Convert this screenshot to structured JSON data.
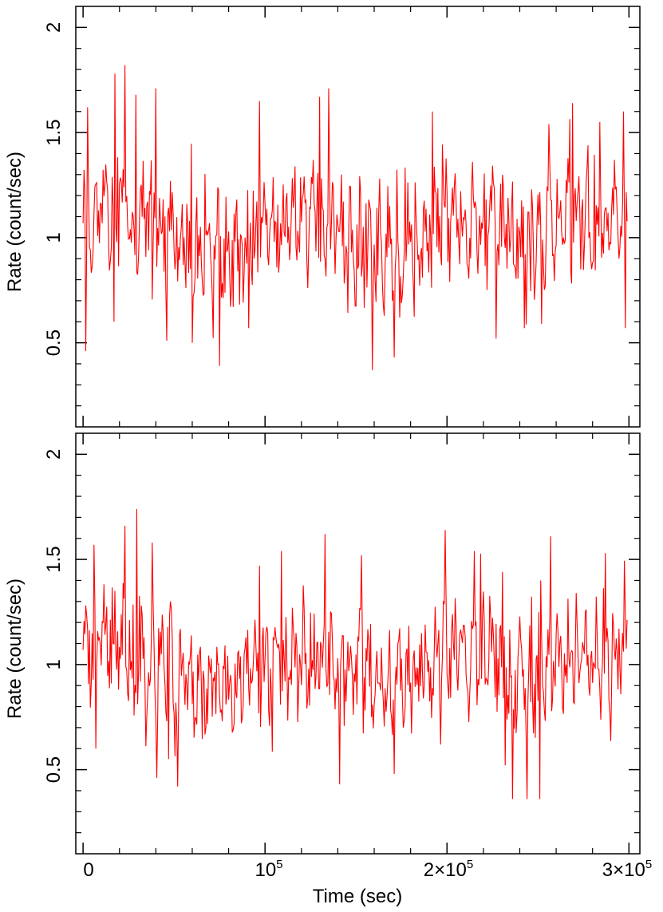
{
  "figure": {
    "xlabel": "Time (sec)",
    "x_tick_labels": [
      {
        "mantissa": "0",
        "exponent": ""
      },
      {
        "mantissa": "10",
        "exponent": "5"
      },
      {
        "mantissa": "2×10",
        "exponent": "5"
      },
      {
        "mantissa": "3×10",
        "exponent": "5"
      }
    ]
  },
  "chart_data": [
    {
      "type": "line",
      "panel": "top",
      "ylabel": "Rate (count/sec)",
      "xlim": [
        -4000,
        306000
      ],
      "ylim": [
        0.1,
        2.1
      ],
      "y_ticks": [
        0.5,
        1,
        1.5,
        2
      ],
      "y_tick_labels": [
        "0.5",
        "1",
        "1.5",
        "2"
      ],
      "x_ticks": [
        0,
        100000,
        200000,
        300000
      ],
      "series_color": "#ff0000",
      "time_step_sec": 500,
      "series": [
        {
          "envelope": {
            "x": [
              0,
              20000,
              40000,
              60000,
              80000,
              100000,
              120000,
              140000,
              160000,
              180000,
              200000,
              220000,
              240000,
              260000,
              280000,
              300000
            ],
            "y": [
              1.08,
              1.15,
              1.05,
              0.93,
              0.92,
              1.02,
              1.1,
              1.03,
              0.92,
              0.98,
              1.12,
              1.05,
              0.97,
              1.05,
              1.12,
              1.15
            ]
          },
          "peaks": [
            {
              "x": 1500,
              "y": 1.36
            },
            {
              "x": 2300,
              "y": 1.62
            },
            {
              "x": 17500,
              "y": 1.78
            },
            {
              "x": 23000,
              "y": 1.82
            },
            {
              "x": 29000,
              "y": 1.68
            },
            {
              "x": 40000,
              "y": 1.71
            },
            {
              "x": 97000,
              "y": 1.65
            },
            {
              "x": 135000,
              "y": 1.71
            },
            {
              "x": 130000,
              "y": 1.67
            },
            {
              "x": 192000,
              "y": 1.6
            },
            {
              "x": 269000,
              "y": 1.64
            },
            {
              "x": 297000,
              "y": 1.6
            },
            {
              "x": 256000,
              "y": 1.54
            },
            {
              "x": 284000,
              "y": 1.55
            }
          ],
          "dips": [
            {
              "x": 1500,
              "y": 0.46
            },
            {
              "x": 17000,
              "y": 0.6
            },
            {
              "x": 46000,
              "y": 0.51
            },
            {
              "x": 60000,
              "y": 0.5
            },
            {
              "x": 75000,
              "y": 0.39
            },
            {
              "x": 91000,
              "y": 0.57
            },
            {
              "x": 159000,
              "y": 0.37
            },
            {
              "x": 171000,
              "y": 0.43
            },
            {
              "x": 227000,
              "y": 0.52
            },
            {
              "x": 252000,
              "y": 0.59
            },
            {
              "x": 298000,
              "y": 0.57
            }
          ]
        }
      ]
    },
    {
      "type": "line",
      "panel": "bottom",
      "ylabel": "Rate (count/sec)",
      "xlim": [
        -4000,
        306000
      ],
      "ylim": [
        0.1,
        2.1
      ],
      "y_ticks": [
        0.5,
        1,
        1.5,
        2
      ],
      "y_tick_labels": [
        "0.5",
        "1",
        "1.5",
        "2"
      ],
      "x_ticks": [
        0,
        100000,
        200000,
        300000
      ],
      "series_color": "#ff0000",
      "time_step_sec": 500,
      "series": [
        {
          "envelope": {
            "x": [
              0,
              20000,
              40000,
              60000,
              80000,
              100000,
              120000,
              140000,
              160000,
              180000,
              200000,
              220000,
              240000,
              260000,
              280000,
              300000
            ],
            "y": [
              1.05,
              1.12,
              1.02,
              0.9,
              0.9,
              0.98,
              1.05,
              1.0,
              0.92,
              0.97,
              1.08,
              1.02,
              0.93,
              0.98,
              1.05,
              1.1
            ]
          },
          "peaks": [
            {
              "x": 6000,
              "y": 1.57
            },
            {
              "x": 23000,
              "y": 1.66
            },
            {
              "x": 29500,
              "y": 1.74
            },
            {
              "x": 38000,
              "y": 1.58
            },
            {
              "x": 133000,
              "y": 1.62
            },
            {
              "x": 199000,
              "y": 1.64
            },
            {
              "x": 257000,
              "y": 1.61
            },
            {
              "x": 287000,
              "y": 1.53
            },
            {
              "x": 109000,
              "y": 1.54
            },
            {
              "x": 97000,
              "y": 1.47
            },
            {
              "x": 215000,
              "y": 1.54
            }
          ],
          "dips": [
            {
              "x": 7000,
              "y": 0.6
            },
            {
              "x": 47000,
              "y": 0.55
            },
            {
              "x": 52000,
              "y": 0.42
            },
            {
              "x": 141000,
              "y": 0.43
            },
            {
              "x": 171000,
              "y": 0.48
            },
            {
              "x": 236000,
              "y": 0.36
            },
            {
              "x": 244000,
              "y": 0.36
            },
            {
              "x": 251000,
              "y": 0.36
            },
            {
              "x": 232000,
              "y": 0.52
            }
          ]
        }
      ]
    }
  ]
}
